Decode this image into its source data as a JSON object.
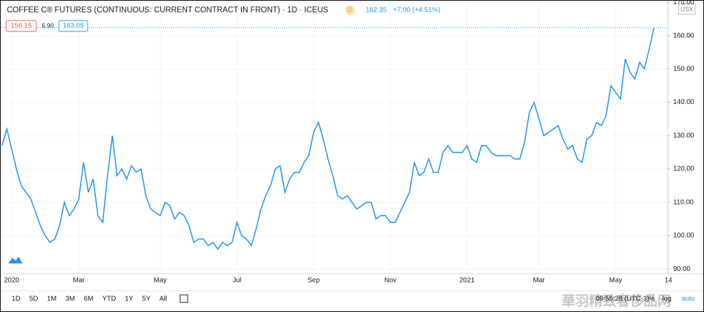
{
  "header": {
    "title": "COFFEE C® FUTURES (CONTINUOUS: CURRENT CONTRACT IN FRONT) · 1D · ICEUS",
    "badge": "D",
    "last": "162.35",
    "change": "+7.00",
    "change_pct": "(+4.51%)",
    "bid": "156.15",
    "spread": "6.90",
    "ask": "163.05",
    "currency": "USX"
  },
  "toolbar": {
    "ranges": [
      "1D",
      "5D",
      "1M",
      "3M",
      "6M",
      "YTD",
      "1Y",
      "5Y",
      "All"
    ],
    "time": "09:55:28 (UTC-3)",
    "percent": "%",
    "log": "log",
    "auto": "auto",
    "watermark": "華羽精致奢侈品网"
  },
  "chart_data": {
    "type": "line",
    "categories": [
      null,
      null,
      "2020",
      null,
      null,
      null,
      null,
      null,
      null,
      null,
      null,
      null,
      null,
      null,
      null,
      null,
      "Mar",
      null,
      null,
      null,
      null,
      null,
      null,
      null,
      null,
      null,
      null,
      null,
      null,
      null,
      null,
      null,
      null,
      "May",
      null,
      null,
      null,
      null,
      null,
      null,
      null,
      null,
      null,
      null,
      null,
      null,
      null,
      null,
      null,
      "Jul",
      null,
      null,
      null,
      null,
      null,
      null,
      null,
      null,
      null,
      null,
      null,
      null,
      null,
      null,
      null,
      "Sep",
      null,
      null,
      null,
      null,
      null,
      null,
      null,
      null,
      null,
      null,
      null,
      null,
      null,
      null,
      null,
      "Nov",
      null,
      null,
      null,
      null,
      null,
      null,
      null,
      null,
      null,
      null,
      null,
      null,
      null,
      null,
      null,
      "2021",
      null,
      null,
      null,
      null,
      null,
      null,
      null,
      null,
      null,
      null,
      null,
      null,
      null,
      null,
      "Mar",
      null,
      null,
      null,
      null,
      null,
      null,
      null,
      null,
      null,
      null,
      null,
      null,
      null,
      null,
      null,
      "May",
      null,
      null,
      null,
      null,
      null,
      null,
      null,
      null,
      null,
      null,
      "14"
    ],
    "series": [
      {
        "name": "COFFEE C® FUTURES",
        "color": "#2196f3",
        "values": [
          127,
          132,
          126,
          120,
          115,
          113,
          111,
          107,
          103,
          100,
          98,
          99,
          103,
          110,
          106,
          108,
          111,
          122,
          113,
          117,
          106,
          104,
          118,
          130,
          118,
          120,
          117,
          121,
          119,
          120,
          112,
          108,
          107,
          106,
          110,
          109,
          105,
          107,
          106,
          103,
          98,
          99,
          99,
          97,
          98,
          96,
          98,
          97,
          98,
          104,
          100,
          99,
          97,
          102,
          108,
          112,
          115,
          120,
          121,
          113,
          117,
          119,
          119,
          122,
          124,
          131,
          134,
          129,
          123,
          118,
          112,
          111,
          112,
          110,
          108,
          109,
          110,
          110,
          105,
          106,
          106,
          104,
          104,
          107,
          110,
          113,
          122,
          118,
          119,
          123,
          119,
          119,
          125,
          127,
          125,
          125,
          125,
          127,
          123,
          122,
          127,
          127,
          125,
          124,
          124,
          124,
          124,
          123,
          123,
          128,
          137,
          140,
          135,
          130,
          131,
          132,
          133,
          129,
          126,
          127,
          123,
          122,
          129,
          130,
          134,
          133,
          136,
          145,
          143,
          141,
          153,
          149,
          147,
          152,
          150,
          156,
          162.35,
          null,
          null,
          null
        ]
      }
    ],
    "ylim": [
      88.6,
      170.7
    ],
    "yticks": [
      {
        "value": 90,
        "label": "90.00"
      },
      {
        "value": 100,
        "label": "100.00"
      },
      {
        "value": 110,
        "label": "110.00"
      },
      {
        "value": 120,
        "label": "120.00"
      },
      {
        "value": 130,
        "label": "130.00"
      },
      {
        "value": 140,
        "label": "140.00"
      },
      {
        "value": 150,
        "label": "150.00"
      },
      {
        "value": 160,
        "label": "160.00"
      },
      {
        "value": 170,
        "label": "170.00"
      }
    ],
    "grid": true
  }
}
